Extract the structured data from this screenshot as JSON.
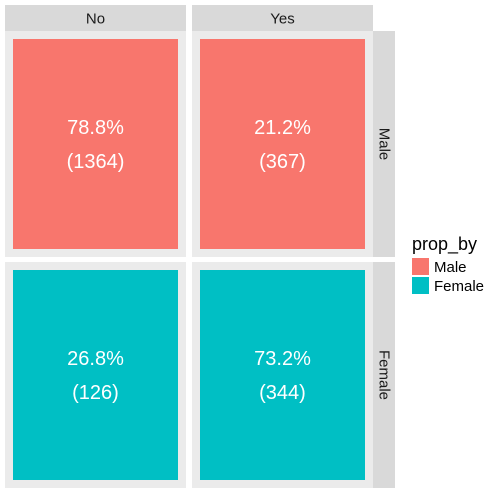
{
  "chart_data": {
    "type": "heatmap",
    "title": "",
    "xlabel": "",
    "ylabel": "",
    "facet_columns": [
      "No",
      "Yes"
    ],
    "facet_rows": [
      "Male",
      "Female"
    ],
    "cells": [
      {
        "row": "Male",
        "col": "No",
        "percent": 78.8,
        "count": 1364,
        "percent_label": "78.8%",
        "count_label": "(1364)"
      },
      {
        "row": "Male",
        "col": "Yes",
        "percent": 21.2,
        "count": 367,
        "percent_label": "21.2%",
        "count_label": "(367)"
      },
      {
        "row": "Female",
        "col": "No",
        "percent": 26.8,
        "count": 126,
        "percent_label": "26.8%",
        "count_label": "(126)"
      },
      {
        "row": "Female",
        "col": "Yes",
        "percent": 73.2,
        "count": 344,
        "percent_label": "73.2%",
        "count_label": "(344)"
      }
    ],
    "legend": {
      "title": "prop_by",
      "position": "right",
      "entries": [
        {
          "label": "Male",
          "color": "#F8766D"
        },
        {
          "label": "Female",
          "color": "#00BFC4"
        }
      ]
    },
    "colors": {
      "panel_background": "#EBEBEB",
      "strip_background": "#D9D9D9",
      "strip_text": "#1A1A1A",
      "cell_text": "#FFFFFF",
      "Male": "#F8766D",
      "Female": "#00BFC4"
    }
  }
}
